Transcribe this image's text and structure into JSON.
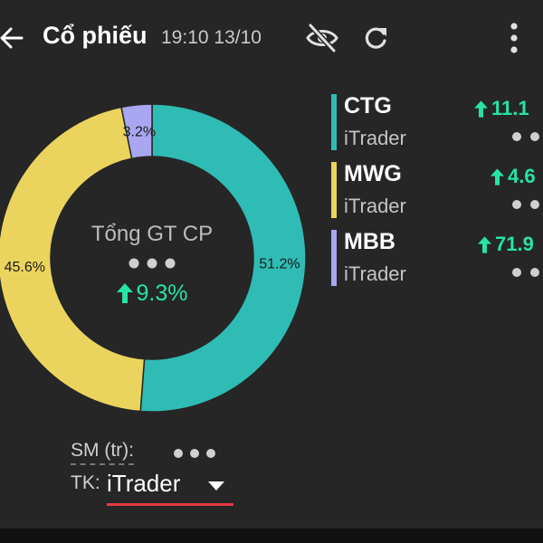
{
  "header": {
    "title": "Cổ phiếu",
    "time": "19:10 13/10"
  },
  "donut": {
    "center_title": "Tổng GT CP",
    "center_change": "9.3%",
    "slices": [
      {
        "code": "CTG",
        "percent": 51.2,
        "label": "51.2%",
        "color": "#2fbcb4"
      },
      {
        "code": "MWG",
        "percent": 45.6,
        "label": "45.6%",
        "color": "#ebd45d"
      },
      {
        "code": "MBB",
        "percent": 3.2,
        "label": "3.2%",
        "color": "#a9a6f2"
      }
    ]
  },
  "legend": [
    {
      "code": "CTG",
      "account": "iTrader",
      "change": "11.1",
      "color": "#2fbcb4"
    },
    {
      "code": "MWG",
      "account": "iTrader",
      "change": "4.6",
      "color": "#ebd45d"
    },
    {
      "code": "MBB",
      "account": "iTrader",
      "change": "71.9",
      "color": "#a9a6f2"
    }
  ],
  "footer": {
    "sm_label": "SM (tr):",
    "tk_label": "TK:",
    "tk_value": "iTrader"
  },
  "colors": {
    "background": "#262626",
    "positive": "#27e3a5",
    "accent_underline": "#e53946"
  }
}
